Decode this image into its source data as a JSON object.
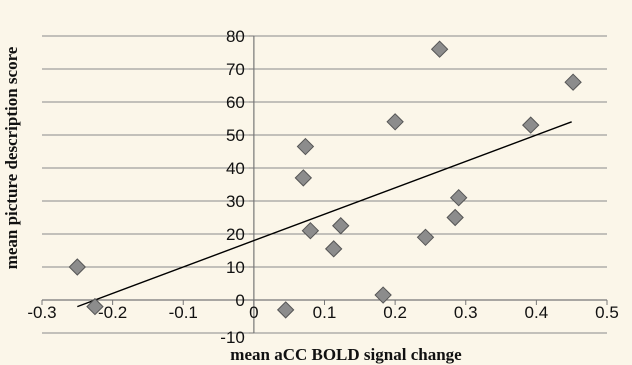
{
  "chart_data": {
    "type": "scatter",
    "title": "",
    "xlabel": "mean aCC BOLD signal change",
    "ylabel": "mean picture description score",
    "xlim": [
      -0.3,
      0.5
    ],
    "ylim": [
      -10,
      80
    ],
    "x_ticks": [
      -0.3,
      -0.2,
      -0.1,
      0,
      0.1,
      0.2,
      0.3,
      0.4,
      0.5
    ],
    "x_tick_labels": [
      "-0.3",
      "-0.2",
      "-0.1",
      "0",
      "0.1",
      "0.2",
      "0.3",
      "0.4",
      "0.5"
    ],
    "y_ticks": [
      -10,
      0,
      10,
      20,
      30,
      40,
      50,
      60,
      70,
      80
    ],
    "y_tick_labels": [
      "-10",
      "0",
      "10",
      "20",
      "30",
      "40",
      "50",
      "60",
      "70",
      "80"
    ],
    "grid": {
      "horizontal": true,
      "vertical": false
    },
    "legend": "none",
    "marker": "diamond",
    "marker_color": "#8c8c8c",
    "points": [
      {
        "x": -0.25,
        "y": 10
      },
      {
        "x": -0.225,
        "y": -2
      },
      {
        "x": 0.045,
        "y": -3
      },
      {
        "x": 0.07,
        "y": 37
      },
      {
        "x": 0.073,
        "y": 46.5
      },
      {
        "x": 0.08,
        "y": 21
      },
      {
        "x": 0.113,
        "y": 15.5
      },
      {
        "x": 0.123,
        "y": 22.5
      },
      {
        "x": 0.183,
        "y": 1.5
      },
      {
        "x": 0.2,
        "y": 54
      },
      {
        "x": 0.243,
        "y": 19
      },
      {
        "x": 0.263,
        "y": 76
      },
      {
        "x": 0.285,
        "y": 25
      },
      {
        "x": 0.29,
        "y": 31
      },
      {
        "x": 0.392,
        "y": 53
      },
      {
        "x": 0.452,
        "y": 66
      }
    ],
    "trendline": {
      "type": "linear",
      "x_start": -0.25,
      "x_end": 0.45,
      "y_start": -2,
      "y_end": 54
    }
  }
}
